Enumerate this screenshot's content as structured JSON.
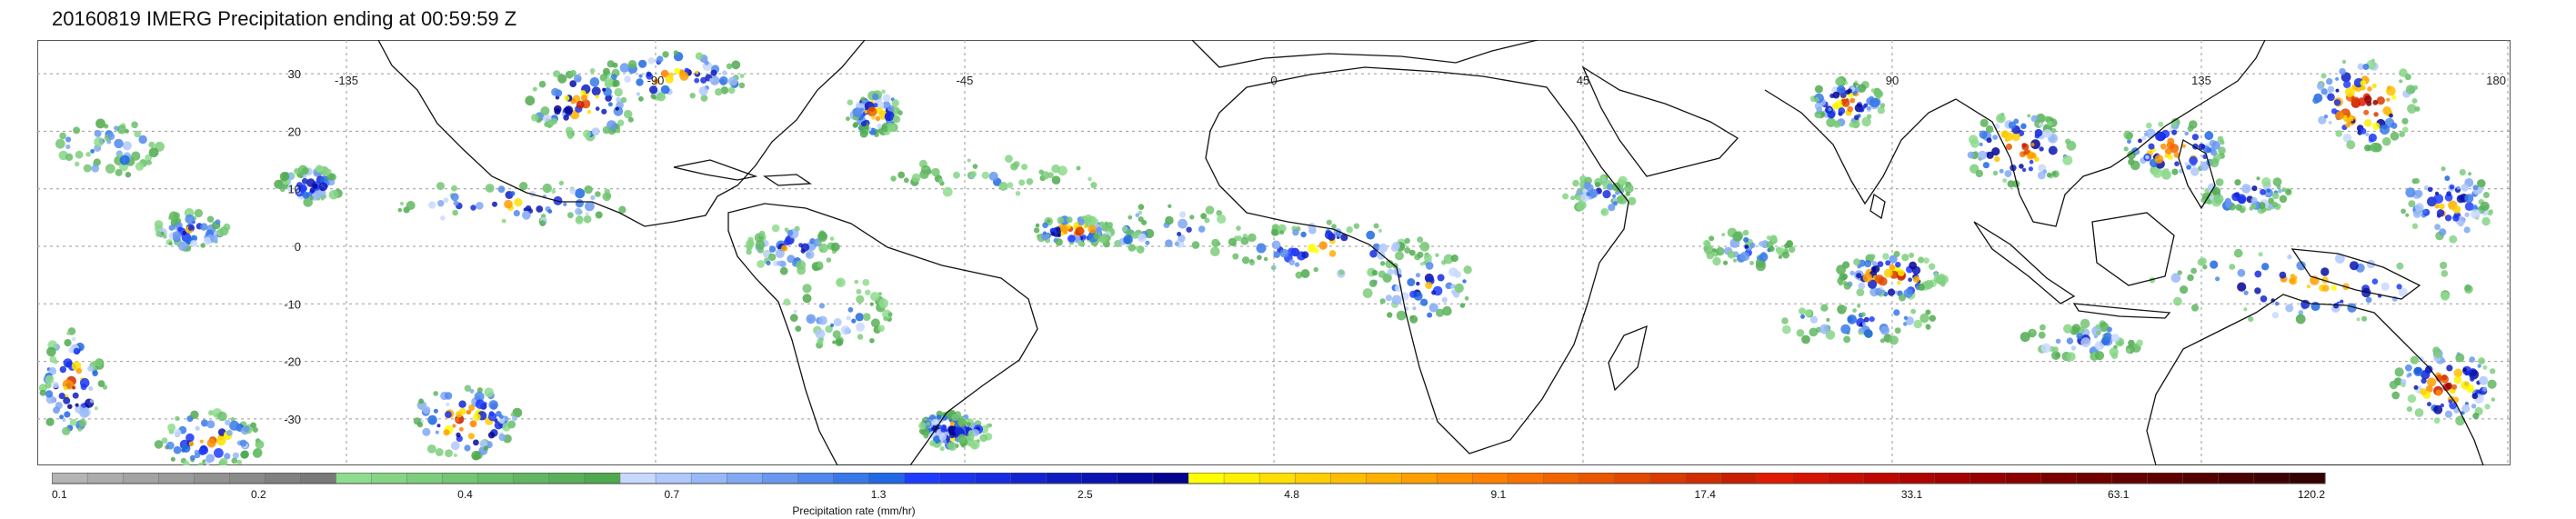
{
  "title": "20160819 IMERG Precipitation ending at 00:59:59 Z",
  "map": {
    "lon_labels": [
      "-135",
      "-90",
      "-45",
      "0",
      "45",
      "90",
      "135",
      "180"
    ],
    "lat_labels": [
      "30",
      "20",
      "10",
      "0",
      "-10",
      "-20",
      "-30"
    ]
  },
  "legend": {
    "label": "Precipitation rate (mm/hr)",
    "ticks": [
      "0.1",
      "0.2",
      "0.4",
      "0.7",
      "1.3",
      "2.5",
      "4.8",
      "9.1",
      "17.4",
      "33.1",
      "63.1",
      "120.2"
    ],
    "color_groups": [
      [
        "#b4b4b4",
        "#acacac",
        "#a3a3a3",
        "#9b9b9b",
        "#929292",
        "#8a8a8a",
        "#818181",
        "#797979"
      ],
      [
        "#8fdc8f",
        "#85d585",
        "#7ccd7c",
        "#73c673",
        "#6abf6a",
        "#61b761",
        "#58b058",
        "#4fa94f"
      ],
      [
        "#c8d8ff",
        "#b0c8fb",
        "#98b8f7",
        "#80a8f3",
        "#6898ef",
        "#5088eb",
        "#3878e7",
        "#2068e3"
      ],
      [
        "#1e3cff",
        "#1a34f0",
        "#162ce0",
        "#1224d0",
        "#0e1cc0",
        "#0a14b0",
        "#060ca0",
        "#020490"
      ],
      [
        "#ffff00",
        "#ffef00",
        "#ffdf00",
        "#ffcf00",
        "#ffbf00",
        "#ffaf00",
        "#ff9f00",
        "#ff8f00"
      ],
      [
        "#ff8000",
        "#f87200",
        "#f06400",
        "#e85600",
        "#e04800",
        "#d83a00",
        "#d02c00",
        "#c81e00"
      ],
      [
        "#e01a00",
        "#d41400",
        "#c80e00",
        "#bc0800",
        "#b00400",
        "#a40000",
        "#980000",
        "#8c0000"
      ],
      [
        "#7a0000",
        "#700000",
        "#660000",
        "#5c0000",
        "#520000",
        "#480000",
        "#3e0000",
        "#340000"
      ]
    ]
  }
}
